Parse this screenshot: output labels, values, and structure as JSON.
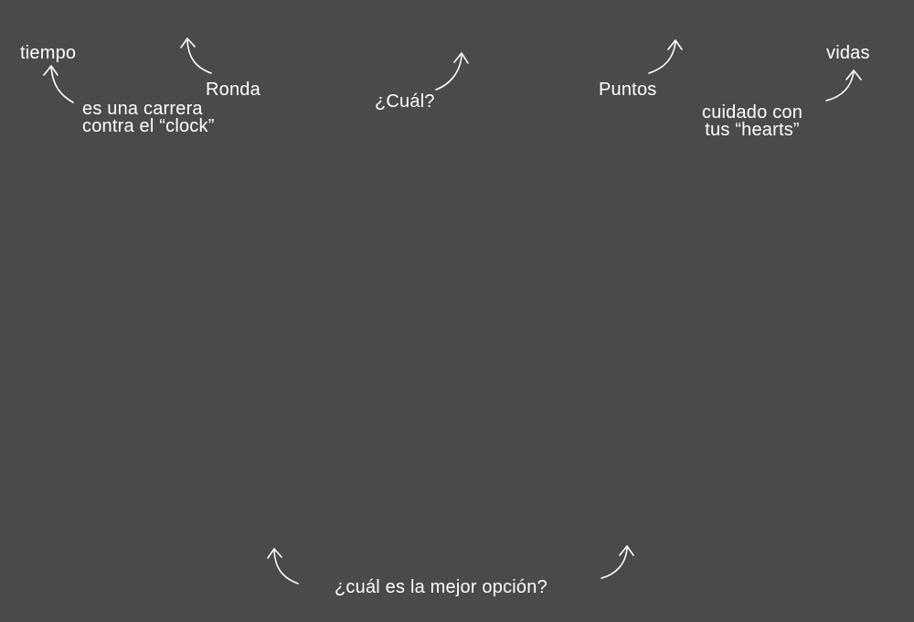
{
  "hud_labels": {
    "tiempo": "tiempo",
    "ronda": "Ronda",
    "cual": "¿Cuál?",
    "puntos": "Puntos",
    "vidas": "vidas"
  },
  "annotations": {
    "tiempo_note": {
      "line1": "es una carrera",
      "line2": "contra el “clock”"
    },
    "vidas_note": {
      "line1": "cuidado con",
      "line2": "tus “hearts”"
    },
    "options_note": "¿cuál es la mejor opción?"
  },
  "colors": {
    "background": "#4a4a4a",
    "text": "#ffffff"
  },
  "icons": {
    "arrow": "curved-arrow-icon"
  }
}
